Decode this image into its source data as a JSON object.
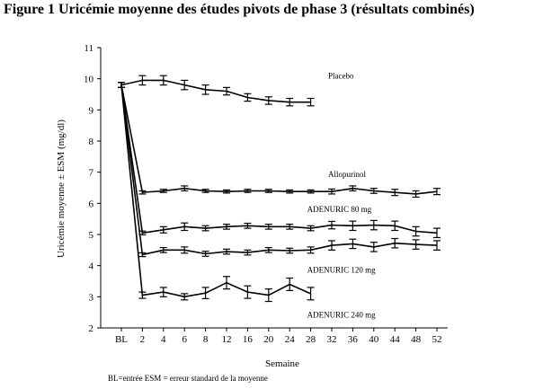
{
  "title": "Figure 1 Uricémie moyenne des études pivots de phase 3 (résultats combinés)",
  "footnote": "BL=entrée  ESM = erreur standard de la moyenne",
  "chart_data": {
    "type": "line",
    "title": "Figure 1 Uricémie moyenne des études pivots de phase 3 (résultats combinés)",
    "xlabel": "Semaine",
    "ylabel": "Uricémie moyenne ± ESM (mg/dl)",
    "categories": [
      "BL",
      "2",
      "4",
      "6",
      "8",
      "12",
      "16",
      "20",
      "24",
      "28",
      "32",
      "36",
      "40",
      "44",
      "48",
      "52"
    ],
    "ylim": [
      2,
      11
    ],
    "yticks": [
      2,
      3,
      4,
      5,
      6,
      7,
      8,
      9,
      10,
      11
    ],
    "grid": false,
    "series": [
      {
        "name": "Placebo",
        "values": [
          9.8,
          9.95,
          9.95,
          9.8,
          9.65,
          9.6,
          9.4,
          9.3,
          9.25,
          9.25,
          null,
          null,
          null,
          null,
          null,
          null
        ],
        "errors": [
          0.08,
          0.15,
          0.15,
          0.15,
          0.15,
          0.12,
          0.12,
          0.12,
          0.12,
          0.12,
          null,
          null,
          null,
          null,
          null,
          null
        ]
      },
      {
        "name": "Allopurinol",
        "values": [
          9.8,
          6.35,
          6.4,
          6.48,
          6.4,
          6.38,
          6.4,
          6.4,
          6.38,
          6.38,
          6.38,
          6.48,
          6.4,
          6.35,
          6.3,
          6.38
        ],
        "errors": [
          0.08,
          0.05,
          0.05,
          0.08,
          0.05,
          0.05,
          0.05,
          0.05,
          0.05,
          0.05,
          0.08,
          0.08,
          0.08,
          0.1,
          0.1,
          0.1
        ]
      },
      {
        "name": "ADENURIC 80 mg",
        "values": [
          9.8,
          5.05,
          5.15,
          5.25,
          5.2,
          5.25,
          5.28,
          5.25,
          5.25,
          5.2,
          5.3,
          5.28,
          5.3,
          5.28,
          5.1,
          5.05
        ],
        "errors": [
          0.08,
          0.06,
          0.1,
          0.12,
          0.08,
          0.08,
          0.08,
          0.08,
          0.08,
          0.08,
          0.12,
          0.15,
          0.15,
          0.15,
          0.15,
          0.15
        ]
      },
      {
        "name": "ADENURIC 120 mg",
        "values": [
          9.8,
          4.35,
          4.5,
          4.5,
          4.38,
          4.45,
          4.42,
          4.5,
          4.48,
          4.5,
          4.65,
          4.7,
          4.6,
          4.72,
          4.68,
          4.65
        ],
        "errors": [
          0.08,
          0.06,
          0.08,
          0.1,
          0.08,
          0.08,
          0.08,
          0.08,
          0.08,
          0.1,
          0.15,
          0.15,
          0.15,
          0.15,
          0.15,
          0.15
        ]
      },
      {
        "name": "ADENURIC 240 mg",
        "values": [
          9.8,
          3.05,
          3.15,
          3.0,
          3.12,
          3.45,
          3.15,
          3.05,
          3.4,
          3.1,
          null,
          null,
          null,
          null,
          null,
          null
        ],
        "errors": [
          0.08,
          0.1,
          0.15,
          0.1,
          0.18,
          0.2,
          0.2,
          0.2,
          0.2,
          0.2,
          null,
          null,
          null,
          null,
          null,
          null
        ]
      }
    ],
    "series_labels": [
      {
        "text": "Placebo",
        "anchor_category": "32",
        "anchor_value": 10.0
      },
      {
        "text": "Allopurinol",
        "anchor_category": "32",
        "anchor_value": 6.85
      },
      {
        "text": "ADENURIC 80 mg",
        "anchor_category": "28",
        "anchor_value": 5.72
      },
      {
        "text": "ADENURIC  120 mg",
        "anchor_category": "28",
        "anchor_value": 3.78
      },
      {
        "text": "ADENURIC  240 mg",
        "anchor_category": "28",
        "anchor_value": 2.33
      }
    ]
  }
}
